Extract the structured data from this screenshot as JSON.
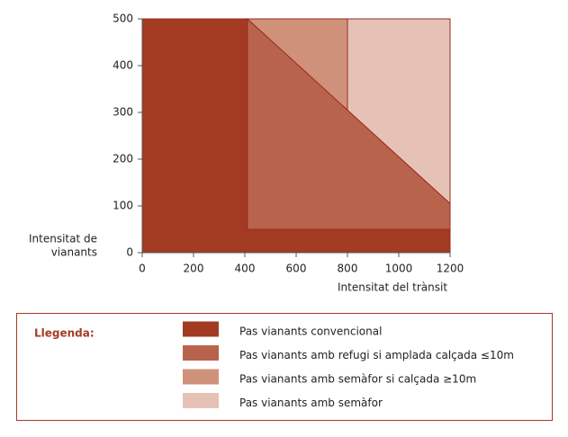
{
  "chart_data": {
    "type": "region",
    "x_label": "Intensitat del trànsit",
    "y_label": [
      "Intensitat de",
      "vianants"
    ],
    "xlim": [
      0,
      1200
    ],
    "ylim": [
      0,
      500
    ],
    "xticks": [
      0,
      200,
      400,
      600,
      800,
      1000,
      1200
    ],
    "yticks": [
      0,
      100,
      200,
      300,
      400,
      500
    ],
    "legend_title": "Llegenda:",
    "series": [
      {
        "name": "Pas vianants convencional",
        "color": "#a33b22",
        "x": [
          0,
          1200,
          1200,
          410,
          410,
          0
        ],
        "y": [
          0,
          0,
          50,
          50,
          500,
          500
        ]
      },
      {
        "name": "Pas vianants amb refugi si amplada calçada ≤10m",
        "color": "#b8644c",
        "x": [
          410,
          1200,
          1200,
          410
        ],
        "y": [
          50,
          50,
          105,
          500
        ]
      },
      {
        "name": "Pas vianants amb semàfor si calçada ≥10m",
        "color": "#d0917a",
        "x": [
          410,
          800,
          800
        ],
        "y": [
          500,
          500,
          305
        ]
      },
      {
        "name": "Pas vianants amb semàfor",
        "color": "#e5c2b5",
        "x": [
          800,
          1200,
          1200,
          800
        ],
        "y": [
          500,
          500,
          105,
          305
        ]
      }
    ]
  }
}
